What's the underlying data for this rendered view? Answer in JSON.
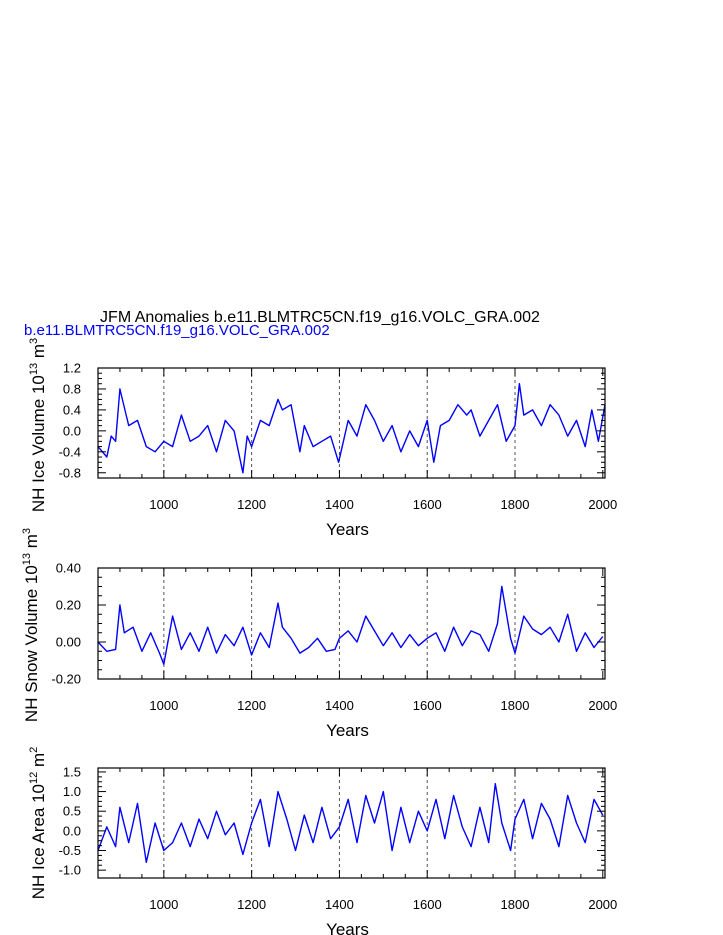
{
  "title": "JFM Anomalies b.e11.BLMTRC5CN.f19_g16.VOLC_GRA.002",
  "subtitle": "b.e11.BLMTRC5CN.f19_g16.VOLC_GRA.002",
  "colors": {
    "line": "#0000ff",
    "subtitle": "#0000ff",
    "axis": "#000000",
    "grid": "#555555"
  },
  "chart_data": [
    {
      "type": "line",
      "xlabel": "Years",
      "ylabel_parts": [
        "NH Ice Volume 10",
        "13",
        " m",
        "3"
      ],
      "xlim": [
        850,
        2005
      ],
      "ylim": [
        -0.9,
        1.2
      ],
      "xticks": [
        1000,
        1200,
        1400,
        1600,
        1800,
        2000
      ],
      "yticks": [
        "1.2",
        "0.8",
        "0.4",
        "0.0",
        "-0.4",
        "-0.8"
      ],
      "ytick_values": [
        1.2,
        0.8,
        0.4,
        0.0,
        -0.4,
        -0.8
      ],
      "grid_x": [
        1000,
        1200,
        1400,
        1600,
        1800
      ],
      "x": [
        850,
        870,
        880,
        890,
        900,
        920,
        940,
        960,
        980,
        1000,
        1020,
        1040,
        1060,
        1080,
        1100,
        1120,
        1140,
        1160,
        1180,
        1190,
        1200,
        1220,
        1240,
        1260,
        1270,
        1290,
        1310,
        1320,
        1340,
        1360,
        1380,
        1398,
        1420,
        1440,
        1460,
        1480,
        1500,
        1520,
        1540,
        1560,
        1580,
        1600,
        1615,
        1630,
        1650,
        1670,
        1690,
        1700,
        1720,
        1740,
        1760,
        1780,
        1800,
        1810,
        1820,
        1840,
        1860,
        1880,
        1900,
        1920,
        1940,
        1960,
        1975,
        1990,
        2005
      ],
      "series": [
        {
          "values": [
            -0.3,
            -0.5,
            -0.1,
            -0.2,
            0.8,
            0.1,
            0.2,
            -0.3,
            -0.4,
            -0.2,
            -0.3,
            0.3,
            -0.2,
            -0.1,
            0.1,
            -0.4,
            0.2,
            0.0,
            -0.8,
            -0.1,
            -0.3,
            0.2,
            0.1,
            0.6,
            0.4,
            0.5,
            -0.4,
            0.1,
            -0.3,
            -0.2,
            -0.1,
            -0.6,
            0.2,
            -0.1,
            0.5,
            0.2,
            -0.2,
            0.1,
            -0.4,
            0.0,
            -0.3,
            0.2,
            -0.6,
            0.1,
            0.2,
            0.5,
            0.3,
            0.4,
            -0.1,
            0.2,
            0.5,
            -0.2,
            0.1,
            0.9,
            0.3,
            0.4,
            0.1,
            0.5,
            0.3,
            -0.1,
            0.2,
            -0.3,
            0.4,
            -0.2,
            0.5
          ]
        }
      ]
    },
    {
      "type": "line",
      "xlabel": "Years",
      "ylabel_parts": [
        "NH Snow Volume 10",
        "13",
        " m",
        "3"
      ],
      "xlim": [
        850,
        2005
      ],
      "ylim": [
        -0.2,
        0.4
      ],
      "xticks": [
        1000,
        1200,
        1400,
        1600,
        1800,
        2000
      ],
      "yticks": [
        "0.40",
        "0.20",
        "0.00",
        "-0.20"
      ],
      "ytick_values": [
        0.4,
        0.2,
        0.0,
        -0.2
      ],
      "grid_x": [
        1000,
        1200,
        1400,
        1600,
        1800
      ],
      "x": [
        850,
        870,
        890,
        900,
        910,
        930,
        950,
        970,
        990,
        1000,
        1020,
        1040,
        1060,
        1080,
        1100,
        1120,
        1140,
        1160,
        1180,
        1200,
        1220,
        1240,
        1260,
        1270,
        1290,
        1310,
        1330,
        1350,
        1370,
        1390,
        1400,
        1420,
        1440,
        1460,
        1480,
        1500,
        1520,
        1540,
        1560,
        1580,
        1600,
        1620,
        1640,
        1660,
        1680,
        1700,
        1720,
        1740,
        1760,
        1770,
        1790,
        1800,
        1820,
        1840,
        1860,
        1880,
        1900,
        1920,
        1940,
        1960,
        1980,
        2000
      ],
      "series": [
        {
          "values": [
            0.0,
            -0.05,
            -0.04,
            0.2,
            0.05,
            0.08,
            -0.05,
            0.05,
            -0.06,
            -0.12,
            0.14,
            -0.04,
            0.05,
            -0.05,
            0.08,
            -0.06,
            0.04,
            -0.02,
            0.08,
            -0.07,
            0.05,
            -0.03,
            0.21,
            0.08,
            0.02,
            -0.06,
            -0.03,
            0.02,
            -0.05,
            -0.04,
            0.02,
            0.06,
            0.0,
            0.14,
            0.06,
            -0.02,
            0.05,
            -0.03,
            0.04,
            -0.02,
            0.02,
            0.05,
            -0.05,
            0.08,
            -0.02,
            0.06,
            0.04,
            -0.05,
            0.1,
            0.3,
            0.02,
            -0.06,
            0.14,
            0.07,
            0.04,
            0.08,
            0.0,
            0.15,
            -0.05,
            0.05,
            -0.03,
            0.03
          ]
        }
      ]
    },
    {
      "type": "line",
      "xlabel": "Years",
      "ylabel_parts": [
        "NH Ice Area 10",
        "12",
        " m",
        "2"
      ],
      "xlim": [
        850,
        2005
      ],
      "ylim": [
        -1.2,
        1.6
      ],
      "xticks": [
        1000,
        1200,
        1400,
        1600,
        1800,
        2000
      ],
      "yticks": [
        "1.5",
        "1.0",
        "0.5",
        "0.0",
        "-0.5",
        "-1.0"
      ],
      "ytick_values": [
        1.5,
        1.0,
        0.5,
        0.0,
        -0.5,
        -1.0
      ],
      "grid_x": [
        1000,
        1200,
        1400,
        1600,
        1800
      ],
      "x": [
        850,
        870,
        890,
        900,
        920,
        940,
        960,
        980,
        1000,
        1020,
        1040,
        1060,
        1080,
        1100,
        1120,
        1140,
        1160,
        1180,
        1200,
        1220,
        1240,
        1260,
        1280,
        1300,
        1320,
        1340,
        1360,
        1380,
        1400,
        1420,
        1440,
        1460,
        1480,
        1500,
        1520,
        1540,
        1560,
        1580,
        1600,
        1620,
        1640,
        1660,
        1680,
        1700,
        1720,
        1740,
        1755,
        1770,
        1790,
        1800,
        1820,
        1840,
        1860,
        1880,
        1900,
        1920,
        1940,
        1960,
        1980,
        2000
      ],
      "series": [
        {
          "values": [
            -0.5,
            0.1,
            -0.4,
            0.6,
            -0.3,
            0.7,
            -0.8,
            0.2,
            -0.5,
            -0.3,
            0.2,
            -0.4,
            0.3,
            -0.2,
            0.5,
            -0.1,
            0.2,
            -0.6,
            0.2,
            0.8,
            -0.4,
            1.0,
            0.3,
            -0.5,
            0.4,
            -0.3,
            0.6,
            -0.2,
            0.1,
            0.8,
            -0.3,
            0.9,
            0.2,
            1.0,
            -0.5,
            0.6,
            -0.3,
            0.5,
            0.0,
            0.8,
            -0.2,
            0.9,
            0.1,
            -0.4,
            0.6,
            -0.3,
            1.2,
            0.2,
            -0.5,
            0.3,
            0.8,
            -0.2,
            0.7,
            0.3,
            -0.4,
            0.9,
            0.2,
            -0.3,
            0.8,
            0.4
          ]
        }
      ]
    }
  ]
}
